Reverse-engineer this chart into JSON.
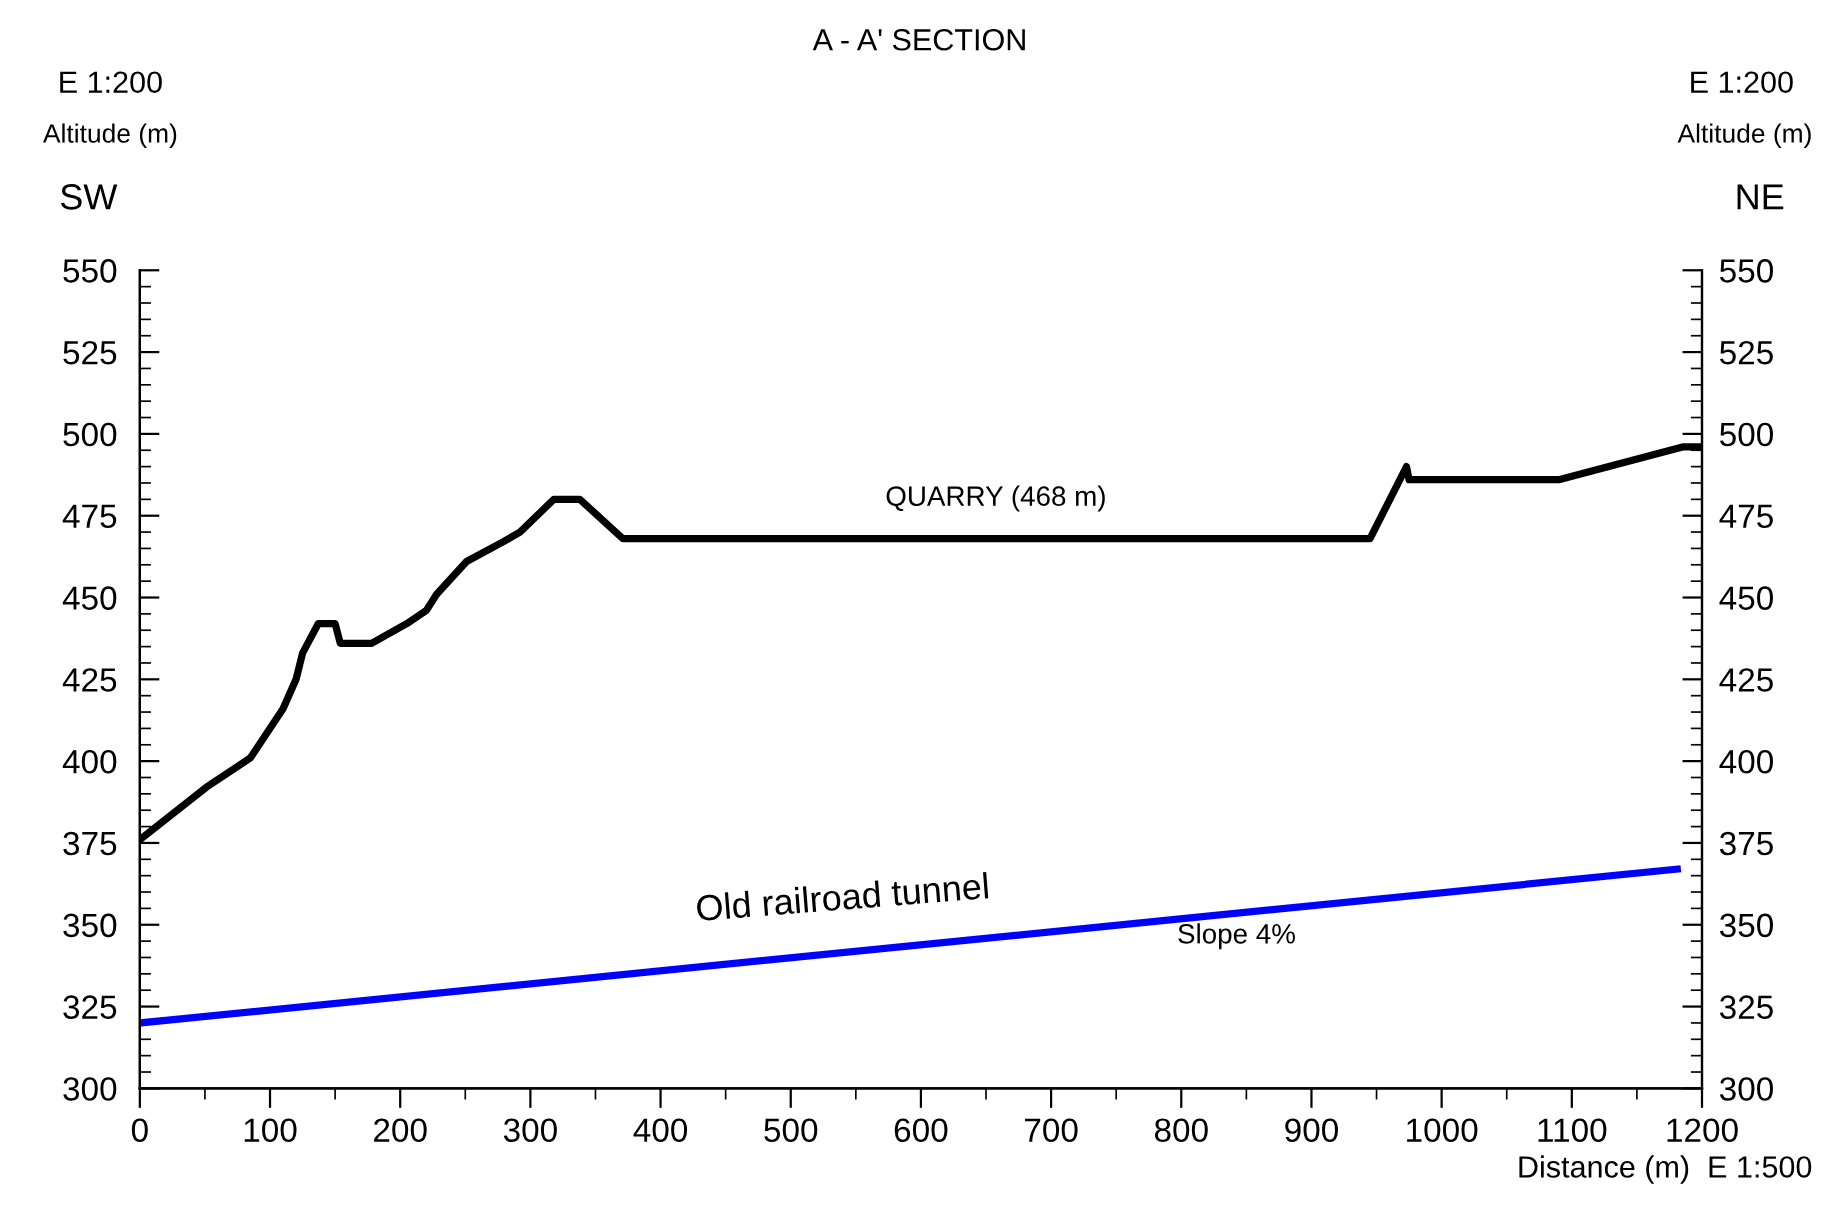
{
  "chart_data": {
    "type": "line",
    "title": "A - A' SECTION",
    "xlabel": "Distance (m)  E 1:500",
    "ylabel": "Altitude (m)",
    "y2label": "Altitude (m)",
    "series": [
      {
        "color": "#000000",
        "x": [
          0,
          51,
          85,
          110,
          120,
          125,
          137,
          150,
          154,
          178,
          205,
          220,
          228,
          251,
          279,
          292,
          318,
          338,
          371,
          945,
          973,
          975,
          1090,
          1185,
          1200
        ],
        "values": [
          376,
          392,
          401,
          416,
          425,
          433,
          442,
          442,
          436,
          436,
          442,
          446,
          451,
          461,
          467,
          470,
          480,
          480,
          468,
          468,
          490,
          486,
          486,
          496,
          496
        ]
      },
      {
        "color": "#0000ff",
        "x": [
          0,
          1181
        ],
        "values": [
          320,
          367
        ]
      }
    ],
    "xlim": [
      0,
      1200
    ],
    "xticks": [
      0,
      100,
      200,
      300,
      400,
      500,
      600,
      700,
      800,
      900,
      1000,
      1100,
      1200
    ],
    "ylim": [
      300,
      550
    ],
    "yticks": [
      300,
      325,
      350,
      375,
      400,
      425,
      450,
      475,
      500,
      525,
      550
    ],
    "y2lim": [
      300,
      550
    ],
    "y2ticks": [
      300,
      325,
      350,
      375,
      400,
      425,
      450,
      475,
      500,
      525,
      550
    ],
    "grid": false,
    "legend": false,
    "marker": "none",
    "line_style": "solid",
    "annotations": [
      "E 1:200",
      "E 1:200",
      "SW",
      "NE",
      "QUARRY (468 m)",
      "Old railroad tunnel",
      "Slope 4%"
    ]
  }
}
